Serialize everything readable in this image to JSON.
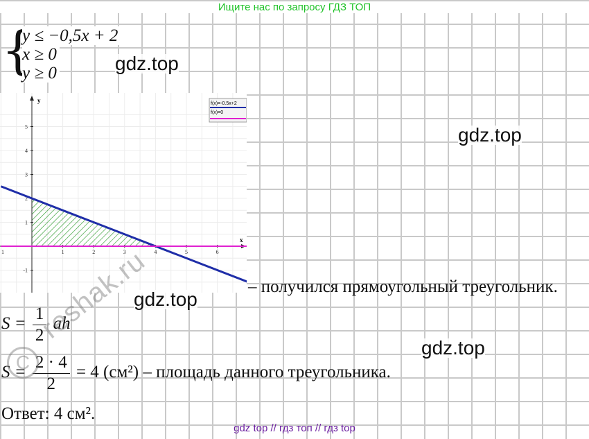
{
  "banner_top": "Ищите нас по запросу ГДЗ ТОП",
  "banner_bottom": "gdz top  //  гдз топ  //  гдз top",
  "watermark": "gdz.top",
  "stamp_text": "reshak.ru",
  "stamp_symbol": "C",
  "system": {
    "line1": "y ≤ −0,5x + 2",
    "line2": "x ≥ 0",
    "line3": "y ≥ 0"
  },
  "chart_data": {
    "type": "line",
    "xlabel": "x",
    "ylabel": "y",
    "xlim": [
      -1,
      7
    ],
    "ylim": [
      -1.8,
      5.8
    ],
    "x_ticks": [
      1,
      2,
      3,
      4,
      5,
      6
    ],
    "x_tick_left": "1",
    "y_ticks": [
      5,
      4,
      3,
      2,
      1,
      -1
    ],
    "series": [
      {
        "name": "f(x)=-0.5x+2",
        "color": "#1f2ea8",
        "points": [
          [
            -1,
            2.5
          ],
          [
            7,
            -1.5
          ]
        ]
      },
      {
        "name": "f(x)=0",
        "color": "#e020d0",
        "points": [
          [
            -1,
            0
          ],
          [
            7,
            0
          ]
        ]
      }
    ],
    "shaded_region": {
      "vertices": [
        [
          0,
          0
        ],
        [
          0,
          2
        ],
        [
          4,
          0
        ]
      ],
      "color": "#2d9b2d"
    }
  },
  "note": "– получился прямоугольный треугольник.",
  "area": {
    "formula_lhs": "S =",
    "formula_num": "1",
    "formula_den": "2",
    "formula_rhs": "ah",
    "calc_lhs": "S =",
    "calc_num": "2 · 4",
    "calc_den": "2",
    "calc_rhs": "= 4 (см²) – площадь данного треугольника."
  },
  "answer": "Ответ: 4 см²."
}
